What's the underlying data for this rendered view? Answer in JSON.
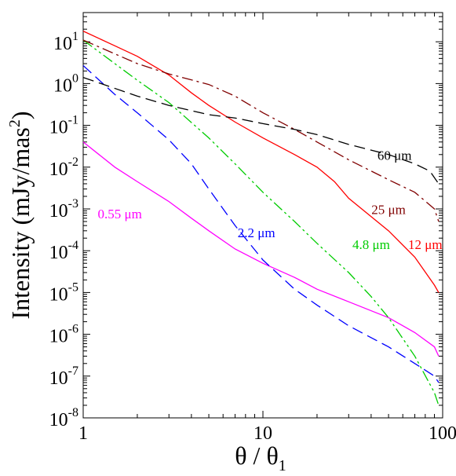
{
  "chart_data": {
    "type": "line",
    "xscale": "log",
    "yscale": "log",
    "xlim": [
      1,
      100
    ],
    "ylim": [
      1e-08,
      50
    ],
    "xlabel": "θ / θ",
    "xlabel_sub": "1",
    "ylabel": "Intensity  (mJy/mas",
    "ylabel_sup": "2",
    "ylabel_end": ")",
    "grid": false,
    "legend": "none",
    "x_ticks": [
      {
        "value": 1,
        "label": "1"
      },
      {
        "value": 10,
        "label": "10"
      },
      {
        "value": 100,
        "label": "100"
      }
    ],
    "y_ticks": [
      {
        "value": 10.0,
        "base": "10",
        "exp": "1"
      },
      {
        "value": 1.0,
        "base": "10",
        "exp": "0"
      },
      {
        "value": 0.1,
        "base": "10",
        "exp": "-1"
      },
      {
        "value": 0.01,
        "base": "10",
        "exp": "-2"
      },
      {
        "value": 0.001,
        "base": "10",
        "exp": "-3"
      },
      {
        "value": 0.0001,
        "base": "10",
        "exp": "-4"
      },
      {
        "value": 1e-05,
        "base": "10",
        "exp": "-5"
      },
      {
        "value": 1e-06,
        "base": "10",
        "exp": "-6"
      },
      {
        "value": 1e-07,
        "base": "10",
        "exp": "-7"
      },
      {
        "value": 1e-08,
        "base": "10",
        "exp": "-8"
      }
    ],
    "series": [
      {
        "name": "0.55 μm",
        "color": "#ff00ff",
        "dash": "solid",
        "label_at": [
          1.6,
          0.0006
        ],
        "x": [
          1,
          1.5,
          2,
          3,
          4,
          5,
          7,
          10,
          15,
          20,
          30,
          50,
          70,
          90,
          95
        ],
        "y": [
          0.04,
          0.01,
          0.0045,
          0.0015,
          0.0006,
          0.0003,
          0.00011,
          5e-05,
          2.3e-05,
          1.2e-05,
          6e-06,
          2.5e-06,
          1.1e-06,
          5e-07,
          3e-07
        ]
      },
      {
        "name": "2.2 μm",
        "color": "#0000ff",
        "dash": "long",
        "label_at": [
          9.2,
          0.00021
        ],
        "x": [
          1,
          1.5,
          2,
          3,
          4,
          5,
          7,
          10,
          15,
          20,
          30,
          50,
          70,
          90,
          95
        ],
        "y": [
          2.7,
          0.55,
          0.2,
          0.045,
          0.012,
          0.003,
          0.0004,
          6e-05,
          1.2e-05,
          5e-06,
          1.6e-06,
          5e-07,
          2e-07,
          1e-07,
          7e-08
        ]
      },
      {
        "name": "4.8 μm",
        "color": "#00cc00",
        "dash": "dashdotdot",
        "label_at": [
          40,
          0.00011
        ],
        "x": [
          1,
          1.5,
          2,
          3,
          5,
          7,
          10,
          15,
          20,
          30,
          40,
          50,
          70,
          90,
          95
        ],
        "y": [
          11,
          3,
          1.2,
          0.35,
          0.05,
          0.012,
          0.0025,
          0.0005,
          0.00015,
          3e-05,
          8e-06,
          2.5e-06,
          3e-07,
          4e-08,
          2e-08
        ]
      },
      {
        "name": "12 μm",
        "color": "#ff0000",
        "dash": "solid",
        "label_at": [
          80,
          0.00011
        ],
        "x": [
          1,
          1.5,
          2,
          3,
          4,
          5,
          7,
          10,
          15,
          20,
          25,
          30,
          50,
          70,
          90,
          95
        ],
        "y": [
          18,
          8,
          4.5,
          1.6,
          0.6,
          0.3,
          0.12,
          0.05,
          0.02,
          0.01,
          0.0045,
          0.0018,
          0.0003,
          7e-05,
          1.5e-05,
          1e-05
        ]
      },
      {
        "name": "25 μm",
        "color": "#800000",
        "dash": "dashdot",
        "label_at": [
          50,
          0.00075
        ],
        "x": [
          1,
          2,
          3,
          5,
          7,
          10,
          15,
          20,
          30,
          50,
          70,
          90,
          95
        ],
        "y": [
          11,
          3,
          1.7,
          0.95,
          0.5,
          0.2,
          0.08,
          0.04,
          0.015,
          0.005,
          0.0025,
          0.001,
          0.0005
        ]
      },
      {
        "name": "60 μm",
        "color": "#000000",
        "dash": "long",
        "label_at": [
          54,
          0.015
        ],
        "x": [
          1,
          2,
          3,
          5,
          7,
          10,
          15,
          20,
          30,
          50,
          70,
          85,
          95
        ],
        "y": [
          1.4,
          0.5,
          0.3,
          0.18,
          0.15,
          0.11,
          0.08,
          0.06,
          0.035,
          0.02,
          0.012,
          0.008,
          0.004
        ]
      }
    ]
  }
}
